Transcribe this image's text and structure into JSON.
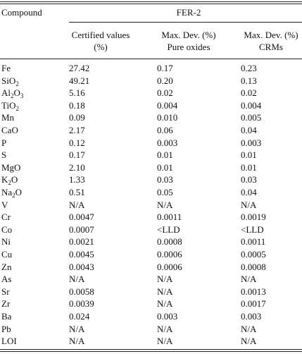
{
  "header": {
    "compound_label": "Compound",
    "group_label": "FER-2",
    "col1_line1": "Certified values",
    "col1_line2": "(%)",
    "col2_line1": "Max. Dev. (%)",
    "col2_line2": "Pure oxides",
    "col3_line1": "Max. Dev. (%)",
    "col3_line2": "CRMs"
  },
  "rows": [
    {
      "compound": "Fe",
      "certified": "27.42",
      "pure_oxides": "0.17",
      "crms": "0.23"
    },
    {
      "compound": "SiO2",
      "certified": "49.21",
      "pure_oxides": "0.20",
      "crms": "0.13"
    },
    {
      "compound": "Al2O3",
      "certified": "5.16",
      "pure_oxides": "0.02",
      "crms": "0.02"
    },
    {
      "compound": "TiO2",
      "certified": "0.18",
      "pure_oxides": "0.004",
      "crms": "0.004"
    },
    {
      "compound": "Mn",
      "certified": "0.09",
      "pure_oxides": "0.010",
      "crms": "0.005"
    },
    {
      "compound": "CaO",
      "certified": "2.17",
      "pure_oxides": "0.06",
      "crms": "0.04"
    },
    {
      "compound": "P",
      "certified": "0.12",
      "pure_oxides": "0.003",
      "crms": "0.003"
    },
    {
      "compound": "S",
      "certified": "0.17",
      "pure_oxides": "0.01",
      "crms": "0.01"
    },
    {
      "compound": "MgO",
      "certified": "2.10",
      "pure_oxides": "0.01",
      "crms": "0.01"
    },
    {
      "compound": "K2O",
      "certified": "1.33",
      "pure_oxides": "0.03",
      "crms": "0.03"
    },
    {
      "compound": "Na2O",
      "certified": "0.51",
      "pure_oxides": "0.05",
      "crms": "0.04"
    },
    {
      "compound": "V",
      "certified": "N/A",
      "pure_oxides": "N/A",
      "crms": "N/A"
    },
    {
      "compound": "Cr",
      "certified": "0.0047",
      "pure_oxides": "0.0011",
      "crms": "0.0019"
    },
    {
      "compound": "Co",
      "certified": "0.0007",
      "pure_oxides": "<LLD",
      "crms": "<LLD"
    },
    {
      "compound": "Ni",
      "certified": "0.0021",
      "pure_oxides": "0.0008",
      "crms": "0.0011"
    },
    {
      "compound": "Cu",
      "certified": "0.0045",
      "pure_oxides": "0.0006",
      "crms": "0.0005"
    },
    {
      "compound": "Zn",
      "certified": "0.0043",
      "pure_oxides": "0.0006",
      "crms": "0.0008"
    },
    {
      "compound": "As",
      "certified": "N/A",
      "pure_oxides": "N/A",
      "crms": "N/A"
    },
    {
      "compound": "Sr",
      "certified": "0.0058",
      "pure_oxides": "N/A",
      "crms": "0.0013"
    },
    {
      "compound": "Zr",
      "certified": "0.0039",
      "pure_oxides": "N/A",
      "crms": "0.0017"
    },
    {
      "compound": "Ba",
      "certified": "0.024",
      "pure_oxides": "0.003",
      "crms": "0.003"
    },
    {
      "compound": "Pb",
      "certified": "N/A",
      "pure_oxides": "N/A",
      "crms": "N/A"
    },
    {
      "compound": "LOI",
      "certified": "N/A",
      "pure_oxides": "N/A",
      "crms": "N/A"
    }
  ]
}
